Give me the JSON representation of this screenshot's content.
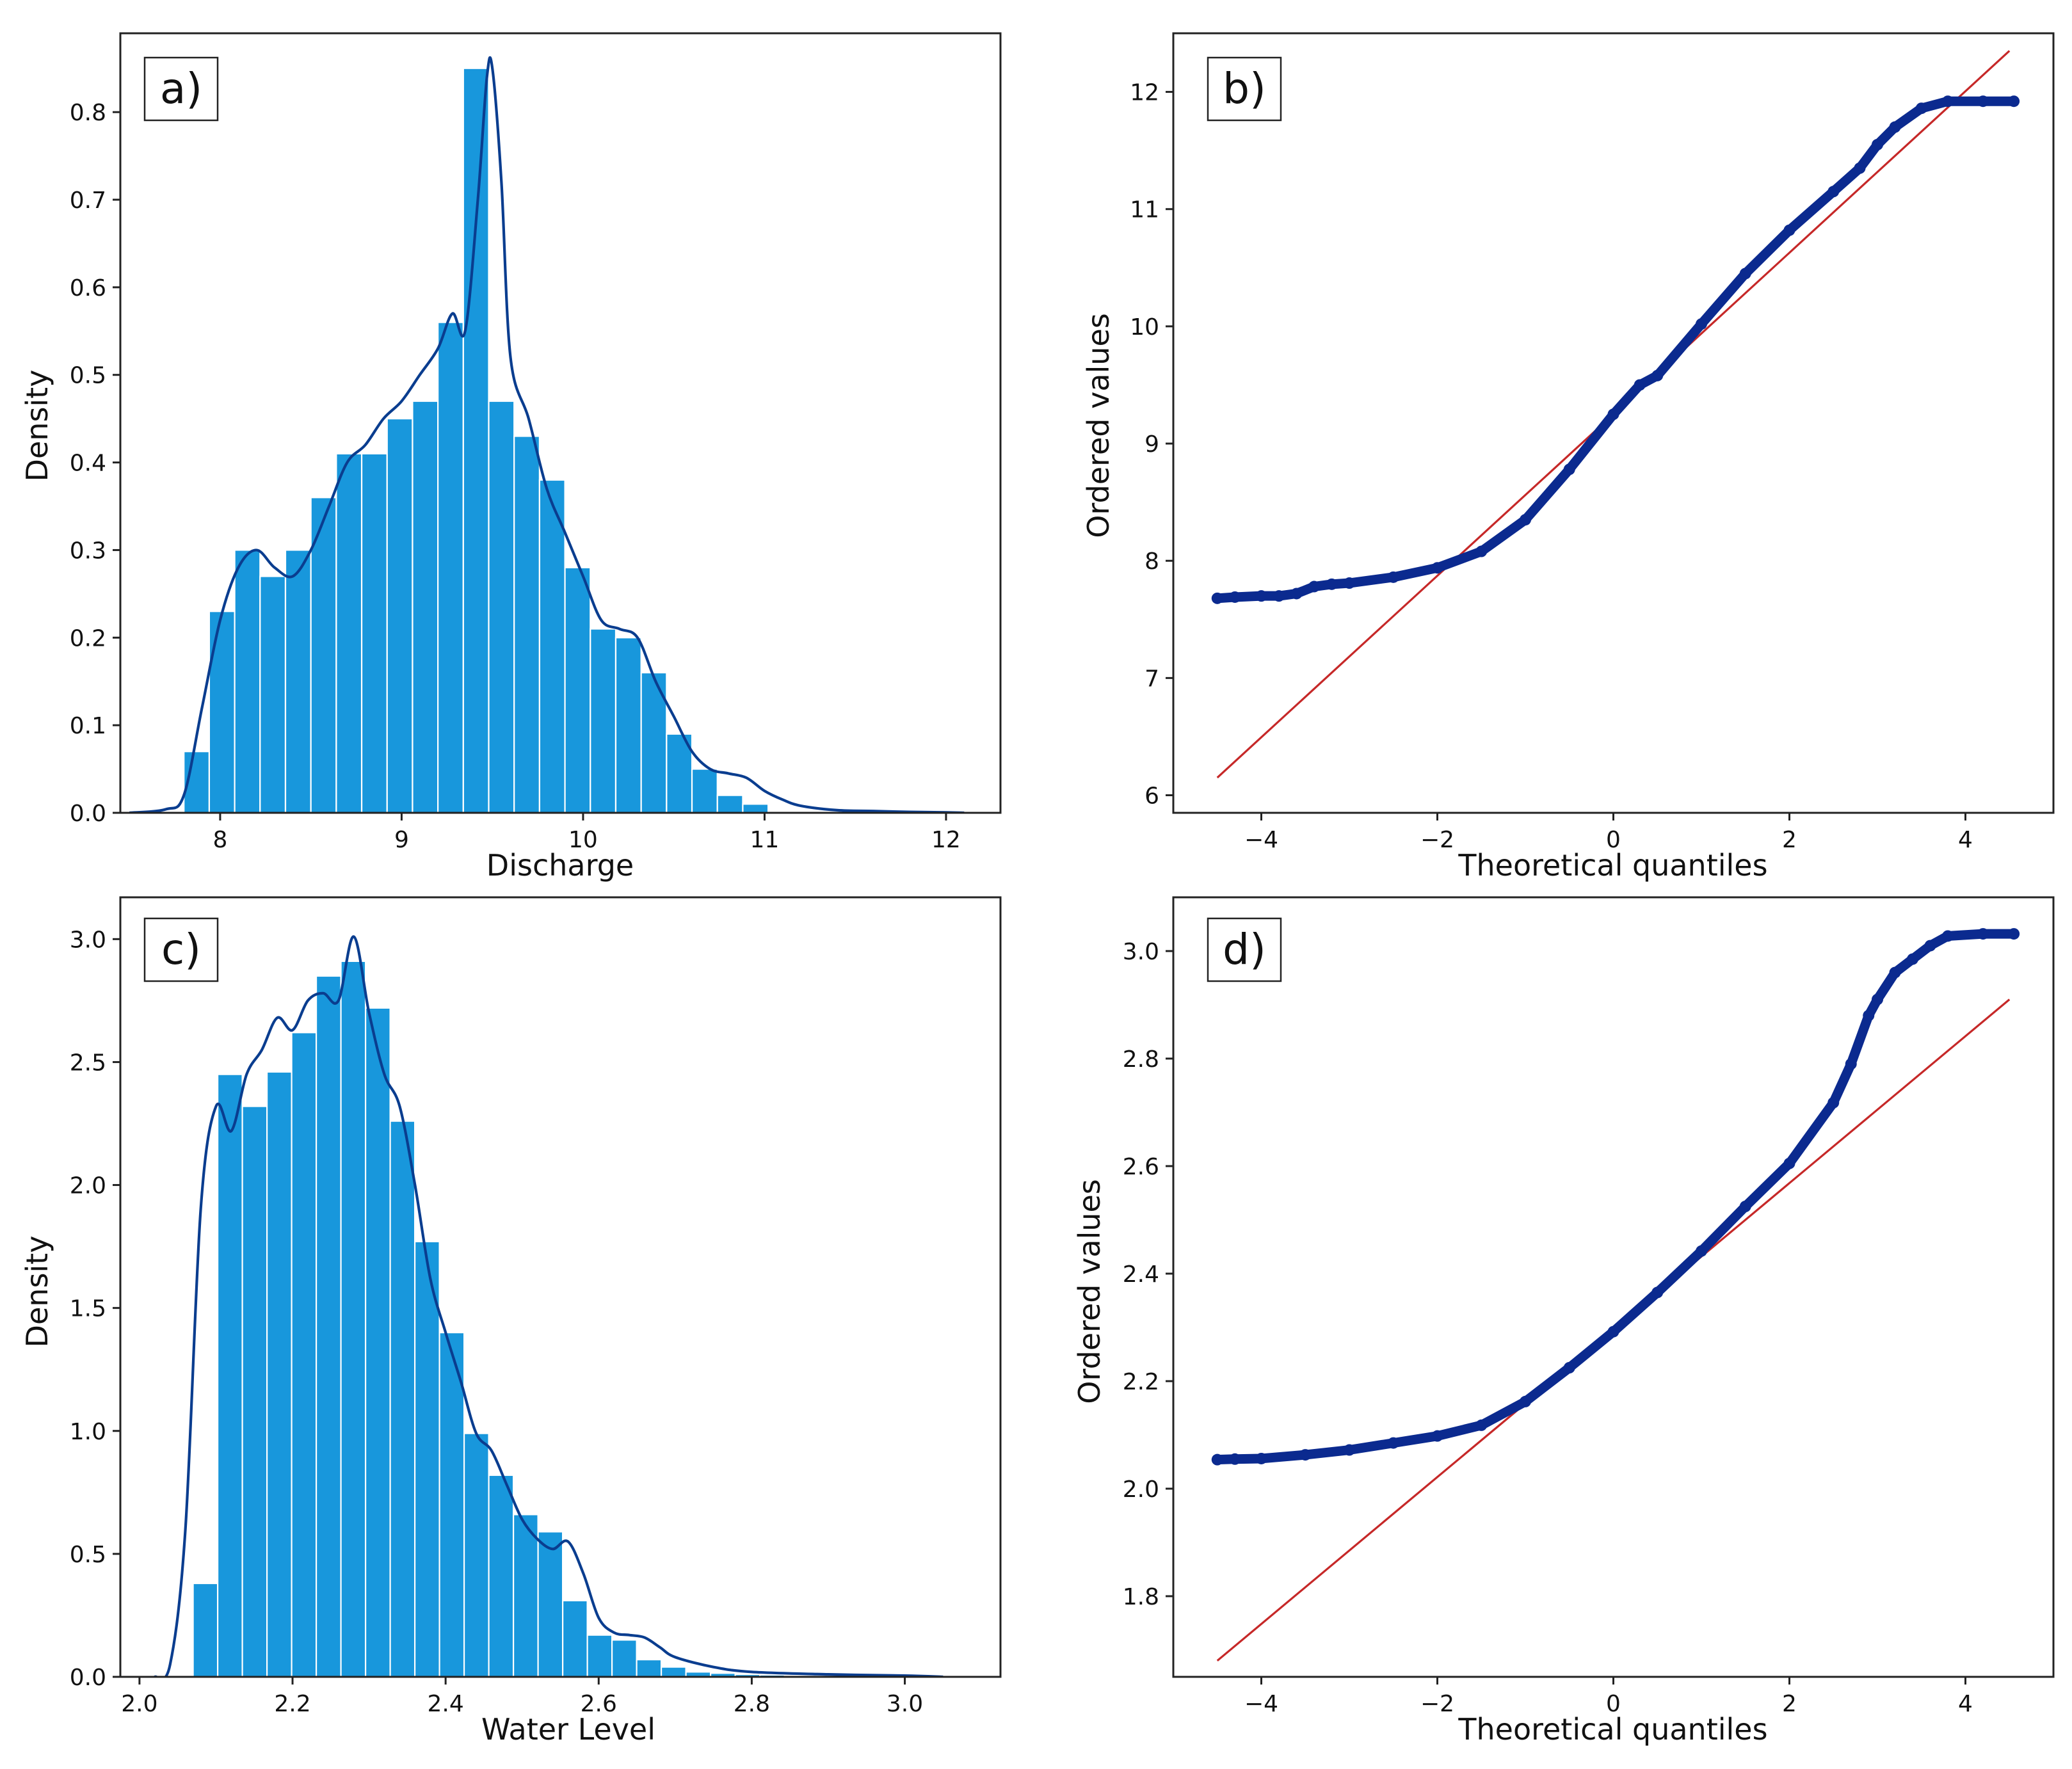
{
  "colors": {
    "bar_fill": "#1897dc",
    "kde_line": "#0a3d8f",
    "qq_points": "#0b2a8f",
    "reference_line": "#c62828",
    "axes": "#222222"
  },
  "chart_data": [
    {
      "id": "a",
      "type": "bar",
      "panel_label": "a)",
      "xlabel": "Discharge",
      "ylabel": "Density",
      "xlim": [
        7.45,
        12.3
      ],
      "ylim": [
        0,
        0.89
      ],
      "xticks": [
        8,
        9,
        10,
        11,
        12
      ],
      "yticks": [
        0.0,
        0.1,
        0.2,
        0.3,
        0.4,
        0.5,
        0.6,
        0.7,
        0.8
      ],
      "xtick_labels": [
        "8",
        "9",
        "10",
        "11",
        "12"
      ],
      "ytick_labels": [
        "0.0",
        "0.1",
        "0.2",
        "0.3",
        "0.4",
        "0.5",
        "0.6",
        "0.7",
        "0.8"
      ],
      "histogram": {
        "bin_start": 7.8,
        "bin_width": 0.14,
        "values": [
          0.07,
          0.23,
          0.3,
          0.27,
          0.3,
          0.36,
          0.41,
          0.41,
          0.45,
          0.47,
          0.56,
          0.85,
          0.47,
          0.43,
          0.38,
          0.28,
          0.21,
          0.2,
          0.16,
          0.09,
          0.05,
          0.02,
          0.01
        ]
      },
      "kde": {
        "x": [
          7.5,
          7.7,
          7.8,
          7.9,
          8.0,
          8.1,
          8.2,
          8.3,
          8.4,
          8.5,
          8.6,
          8.7,
          8.8,
          8.9,
          9.0,
          9.1,
          9.2,
          9.28,
          9.35,
          9.42,
          9.47,
          9.5,
          9.55,
          9.6,
          9.7,
          9.8,
          9.9,
          10.0,
          10.1,
          10.2,
          10.3,
          10.4,
          10.5,
          10.6,
          10.7,
          10.8,
          10.9,
          11.0,
          11.1,
          11.2,
          11.4,
          11.6,
          11.8,
          12.0,
          12.1
        ],
        "y": [
          0.0,
          0.004,
          0.02,
          0.12,
          0.22,
          0.28,
          0.3,
          0.28,
          0.27,
          0.3,
          0.35,
          0.4,
          0.42,
          0.45,
          0.47,
          0.5,
          0.53,
          0.57,
          0.55,
          0.7,
          0.84,
          0.85,
          0.72,
          0.52,
          0.45,
          0.37,
          0.32,
          0.27,
          0.22,
          0.21,
          0.2,
          0.15,
          0.11,
          0.07,
          0.05,
          0.045,
          0.04,
          0.025,
          0.015,
          0.008,
          0.003,
          0.002,
          0.001,
          0.0005,
          0.0
        ]
      }
    },
    {
      "id": "b",
      "type": "scatter",
      "panel_label": "b)",
      "xlabel": "Theoretical quantiles",
      "ylabel": "Ordered values",
      "xlim": [
        -5.0,
        5.0
      ],
      "ylim": [
        5.85,
        12.5
      ],
      "xticks": [
        -4,
        -2,
        0,
        2,
        4
      ],
      "yticks": [
        6,
        7,
        8,
        9,
        10,
        11,
        12
      ],
      "xtick_labels": [
        "−4",
        "−2",
        "0",
        "2",
        "4"
      ],
      "ytick_labels": [
        "6",
        "7",
        "8",
        "9",
        "10",
        "11",
        "12"
      ],
      "reference_line": {
        "x": [
          -4.5,
          4.5
        ],
        "y": [
          6.15,
          12.35
        ]
      },
      "ordered_values": {
        "x": [
          -4.5,
          -4.3,
          -4.0,
          -3.8,
          -3.6,
          -3.4,
          -3.2,
          -3.0,
          -2.5,
          -2.0,
          -1.5,
          -1.0,
          -0.5,
          0.0,
          0.3,
          0.5,
          1.0,
          1.5,
          2.0,
          2.5,
          2.8,
          3.0,
          3.2,
          3.5,
          3.8,
          4.2,
          4.55
        ],
        "y": [
          7.68,
          7.69,
          7.7,
          7.7,
          7.72,
          7.78,
          7.8,
          7.81,
          7.86,
          7.94,
          8.08,
          8.35,
          8.78,
          9.25,
          9.5,
          9.58,
          10.02,
          10.45,
          10.82,
          11.15,
          11.35,
          11.55,
          11.7,
          11.86,
          11.92,
          11.92,
          11.92
        ]
      }
    },
    {
      "id": "c",
      "type": "bar",
      "panel_label": "c)",
      "xlabel": "Water Level",
      "ylabel": "Density",
      "xlim": [
        1.975,
        3.125
      ],
      "ylim": [
        0,
        3.17
      ],
      "xticks": [
        2.0,
        2.2,
        2.4,
        2.6,
        2.8,
        3.0
      ],
      "yticks": [
        0.0,
        0.5,
        1.0,
        1.5,
        2.0,
        2.5,
        3.0
      ],
      "xtick_labels": [
        "2.0",
        "2.2",
        "2.4",
        "2.6",
        "2.8",
        "3.0"
      ],
      "ytick_labels": [
        "0.0",
        "0.5",
        "1.0",
        "1.5",
        "2.0",
        "2.5",
        "3.0"
      ],
      "histogram": {
        "bin_start": 2.07,
        "bin_width": 0.0322,
        "values": [
          0.38,
          2.45,
          2.32,
          2.46,
          2.62,
          2.85,
          2.91,
          2.72,
          2.26,
          1.77,
          1.4,
          0.99,
          0.82,
          0.66,
          0.59,
          0.31,
          0.17,
          0.15,
          0.07,
          0.04,
          0.02,
          0.015,
          0.01,
          0.008,
          0.006,
          0.005,
          0.004,
          0.004,
          0.003,
          0.002
        ]
      },
      "kde": {
        "x": [
          2.02,
          2.04,
          2.06,
          2.08,
          2.1,
          2.12,
          2.14,
          2.16,
          2.18,
          2.2,
          2.22,
          2.24,
          2.26,
          2.28,
          2.3,
          2.32,
          2.34,
          2.36,
          2.38,
          2.4,
          2.42,
          2.44,
          2.46,
          2.48,
          2.5,
          2.52,
          2.54,
          2.56,
          2.58,
          2.6,
          2.62,
          2.64,
          2.66,
          2.68,
          2.7,
          2.75,
          2.8,
          2.9,
          3.0,
          3.05
        ],
        "y": [
          0.0,
          0.05,
          0.6,
          1.9,
          2.32,
          2.22,
          2.45,
          2.55,
          2.68,
          2.63,
          2.75,
          2.78,
          2.75,
          3.01,
          2.7,
          2.45,
          2.32,
          2.0,
          1.62,
          1.4,
          1.2,
          0.99,
          0.92,
          0.78,
          0.64,
          0.56,
          0.52,
          0.55,
          0.42,
          0.24,
          0.18,
          0.17,
          0.16,
          0.12,
          0.08,
          0.04,
          0.02,
          0.01,
          0.005,
          0.0
        ]
      }
    },
    {
      "id": "d",
      "type": "scatter",
      "panel_label": "d)",
      "xlabel": "Theoretical quantiles",
      "ylabel": "Ordered values",
      "xlim": [
        -5.0,
        5.0
      ],
      "ylim": [
        1.65,
        3.1
      ],
      "xticks": [
        -4,
        -2,
        0,
        2,
        4
      ],
      "yticks": [
        1.8,
        2.0,
        2.2,
        2.4,
        2.6,
        2.8,
        3.0
      ],
      "xtick_labels": [
        "−4",
        "−2",
        "0",
        "2",
        "4"
      ],
      "ytick_labels": [
        "1.8",
        "2.0",
        "2.2",
        "2.4",
        "2.6",
        "2.8",
        "3.0"
      ],
      "reference_line": {
        "x": [
          -4.5,
          4.5
        ],
        "y": [
          1.68,
          2.91
        ]
      },
      "ordered_values": {
        "x": [
          -4.5,
          -4.3,
          -4.0,
          -3.5,
          -3.0,
          -2.5,
          -2.0,
          -1.5,
          -1.0,
          -0.5,
          0.0,
          0.5,
          1.0,
          1.5,
          2.0,
          2.5,
          2.7,
          2.9,
          3.0,
          3.2,
          3.4,
          3.6,
          3.8,
          4.2,
          4.55
        ],
        "y": [
          2.054,
          2.055,
          2.056,
          2.063,
          2.072,
          2.085,
          2.098,
          2.118,
          2.162,
          2.225,
          2.292,
          2.365,
          2.442,
          2.525,
          2.605,
          2.718,
          2.79,
          2.88,
          2.91,
          2.96,
          2.985,
          3.01,
          3.028,
          3.032,
          3.032
        ]
      }
    }
  ]
}
